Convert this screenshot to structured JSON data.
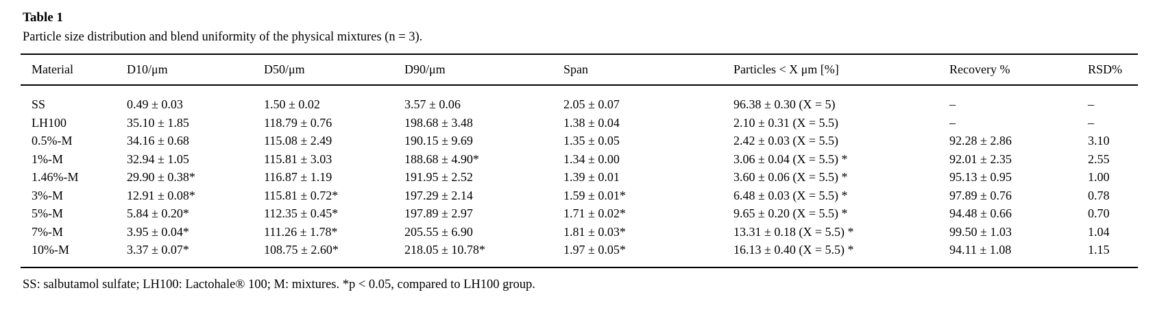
{
  "colors": {
    "background": "#ffffff",
    "text": "#000000",
    "rule": "#000000"
  },
  "table": {
    "title": "Table 1",
    "caption": "Particle size distribution and blend uniformity of the physical mixtures (n = 3).",
    "columns": [
      "Material",
      "D10/μm",
      "D50/μm",
      "D90/μm",
      "Span",
      "Particles < X μm [%]",
      "Recovery %",
      "RSD%"
    ],
    "rows": [
      [
        "SS",
        "0.49 ± 0.03",
        "1.50 ± 0.02",
        "3.57 ± 0.06",
        "2.05 ± 0.07",
        "96.38 ± 0.30 (X = 5)",
        "–",
        "–"
      ],
      [
        "LH100",
        "35.10 ± 1.85",
        "118.79 ± 0.76",
        "198.68 ± 3.48",
        "1.38 ± 0.04",
        "2.10 ± 0.31 (X = 5.5)",
        "–",
        "–"
      ],
      [
        "0.5%-M",
        "34.16 ± 0.68",
        "115.08 ± 2.49",
        "190.15 ± 9.69",
        "1.35 ± 0.05",
        "2.42 ± 0.03 (X = 5.5)",
        "92.28 ± 2.86",
        "3.10"
      ],
      [
        "1%-M",
        "32.94 ± 1.05",
        "115.81 ± 3.03",
        "188.68 ± 4.90*",
        "1.34 ± 0.00",
        "3.06 ± 0.04 (X = 5.5) *",
        "92.01 ± 2.35",
        "2.55"
      ],
      [
        "1.46%-M",
        "29.90 ± 0.38*",
        "116.87 ± 1.19",
        "191.95 ± 2.52",
        "1.39 ± 0.01",
        "3.60 ± 0.06 (X = 5.5) *",
        "95.13 ± 0.95",
        "1.00"
      ],
      [
        "3%-M",
        "12.91 ± 0.08*",
        "115.81 ± 0.72*",
        "197.29 ± 2.14",
        "1.59 ± 0.01*",
        "6.48 ± 0.03 (X = 5.5) *",
        "97.89 ± 0.76",
        "0.78"
      ],
      [
        "5%-M",
        "5.84 ± 0.20*",
        "112.35 ± 0.45*",
        "197.89 ± 2.97",
        "1.71 ± 0.02*",
        "9.65 ± 0.20 (X = 5.5) *",
        "94.48 ± 0.66",
        "0.70"
      ],
      [
        "7%-M",
        "3.95 ± 0.04*",
        "111.26 ± 1.78*",
        "205.55 ± 6.90",
        "1.81 ± 0.03*",
        "13.31 ± 0.18 (X = 5.5) *",
        "99.50 ± 1.03",
        "1.04"
      ],
      [
        "10%-M",
        "3.37 ± 0.07*",
        "108.75 ± 2.60*",
        "218.05 ± 10.78*",
        "1.97 ± 0.05*",
        "16.13 ± 0.40 (X = 5.5) *",
        "94.11 ± 1.08",
        "1.15"
      ]
    ],
    "footnote": "SS: salbutamol sulfate; LH100: Lactohale® 100; M: mixtures. *p < 0.05, compared to LH100 group."
  }
}
